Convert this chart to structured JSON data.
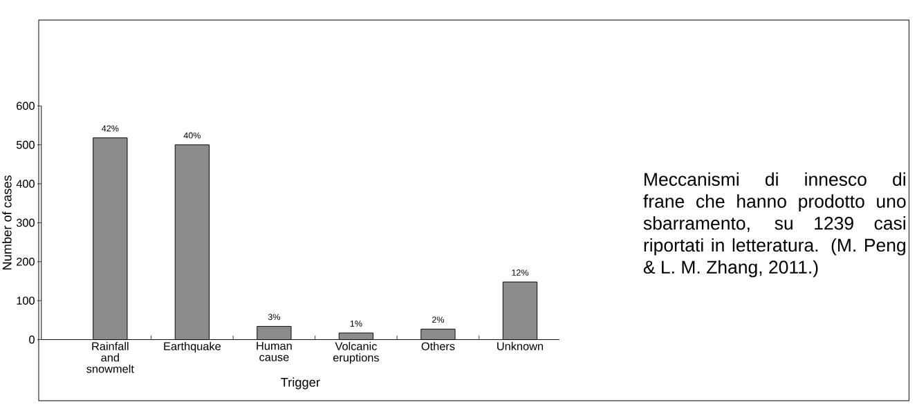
{
  "chart_data": {
    "type": "bar",
    "categories": [
      "Rainfall and snowmelt",
      "Earthquake",
      "Human cause",
      "Volcanic eruptions",
      "Others",
      "Unknown"
    ],
    "values": [
      518,
      500,
      34,
      17,
      27,
      148
    ],
    "color": "#8c8c8c",
    "xlabel": "Trigger",
    "ylabel": "Number of cases",
    "ylim": [
      0,
      600
    ],
    "yticks": [
      0,
      100,
      200,
      300,
      400,
      500,
      600
    ],
    "annotations": [
      {
        "text": "42%",
        "x": "Rainfall and snowmelt",
        "y": 518
      },
      {
        "text": "40%",
        "x": "Earthquake",
        "y": 500
      },
      {
        "text": "3%",
        "x": "Human cause",
        "y": 34
      },
      {
        "text": "1%",
        "x": "Volcanic eruptions",
        "y": 17
      },
      {
        "text": "2%",
        "x": "Others",
        "y": 27
      },
      {
        "text": "12%",
        "x": "Unknown",
        "y": 148
      },
      "Meccanismi di innesco di frane che hanno prodotto uno sbarramento, su 1239 casi riportati in letteratura. (M. Peng & L. M. Zhang, 2011.)"
    ]
  }
}
